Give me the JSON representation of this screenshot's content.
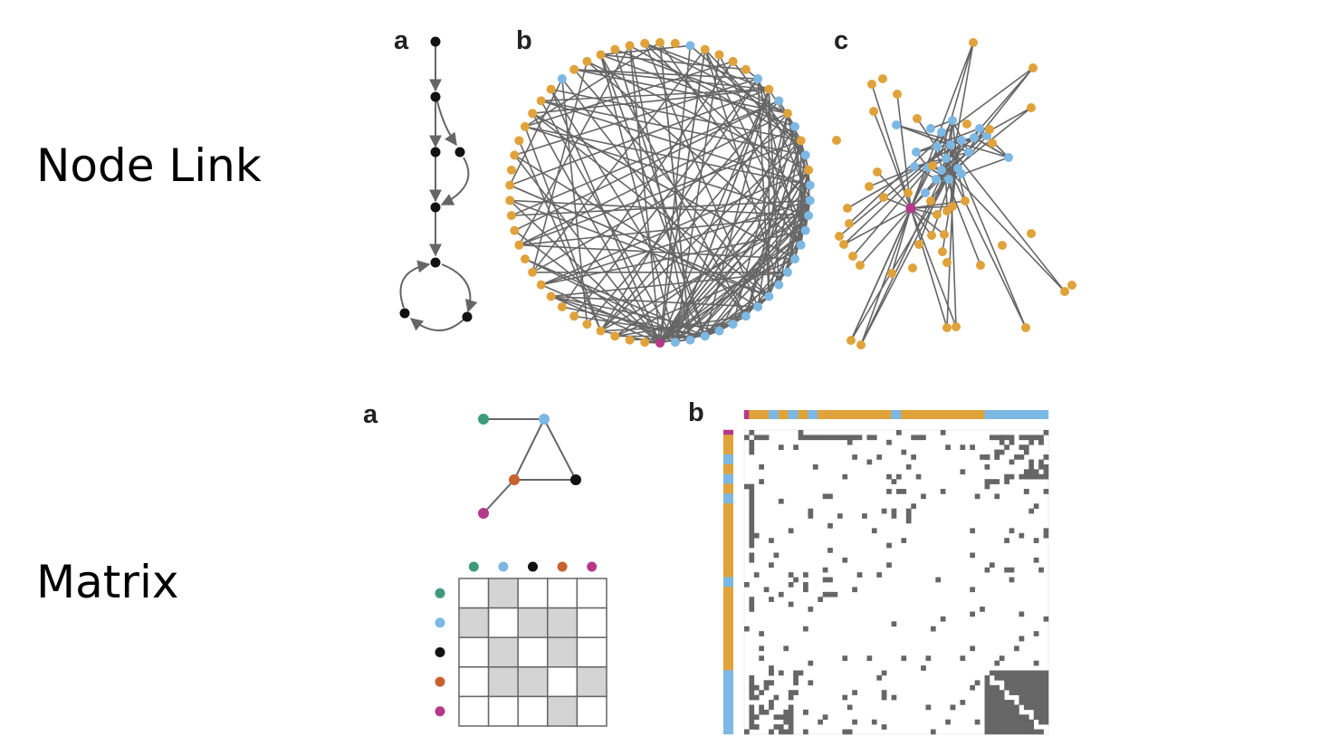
{
  "labels": {
    "node_link": "Node Link",
    "matrix": "Matrix"
  },
  "panel_letters": {
    "nl_a": "a",
    "nl_b": "b",
    "nl_c": "c",
    "mx_a": "a",
    "mx_b": "b"
  },
  "colors": {
    "orange": "#e0a23a",
    "blue": "#7cb8e4",
    "magenta": "#b5388a",
    "green": "#3d9a7a",
    "black": "#111111",
    "rust": "#c8612f",
    "edge": "#666666",
    "matrix_fill": "#d4d4d4",
    "adjacency_fill": "#666666"
  },
  "small_graph": {
    "nodes": [
      "green",
      "blue",
      "black",
      "rust",
      "magenta"
    ],
    "edges": [
      [
        "green",
        "blue"
      ],
      [
        "blue",
        "black"
      ],
      [
        "blue",
        "rust"
      ],
      [
        "rust",
        "black"
      ],
      [
        "rust",
        "magenta"
      ]
    ]
  },
  "small_matrix": {
    "rows": [
      "green",
      "blue",
      "black",
      "rust",
      "magenta"
    ],
    "cols": [
      "green",
      "blue",
      "black",
      "rust",
      "magenta"
    ],
    "cells": [
      [
        0,
        1,
        0,
        0,
        0
      ],
      [
        1,
        0,
        1,
        1,
        0
      ],
      [
        0,
        1,
        0,
        1,
        0
      ],
      [
        0,
        1,
        1,
        0,
        1
      ],
      [
        0,
        0,
        0,
        1,
        0
      ]
    ]
  }
}
